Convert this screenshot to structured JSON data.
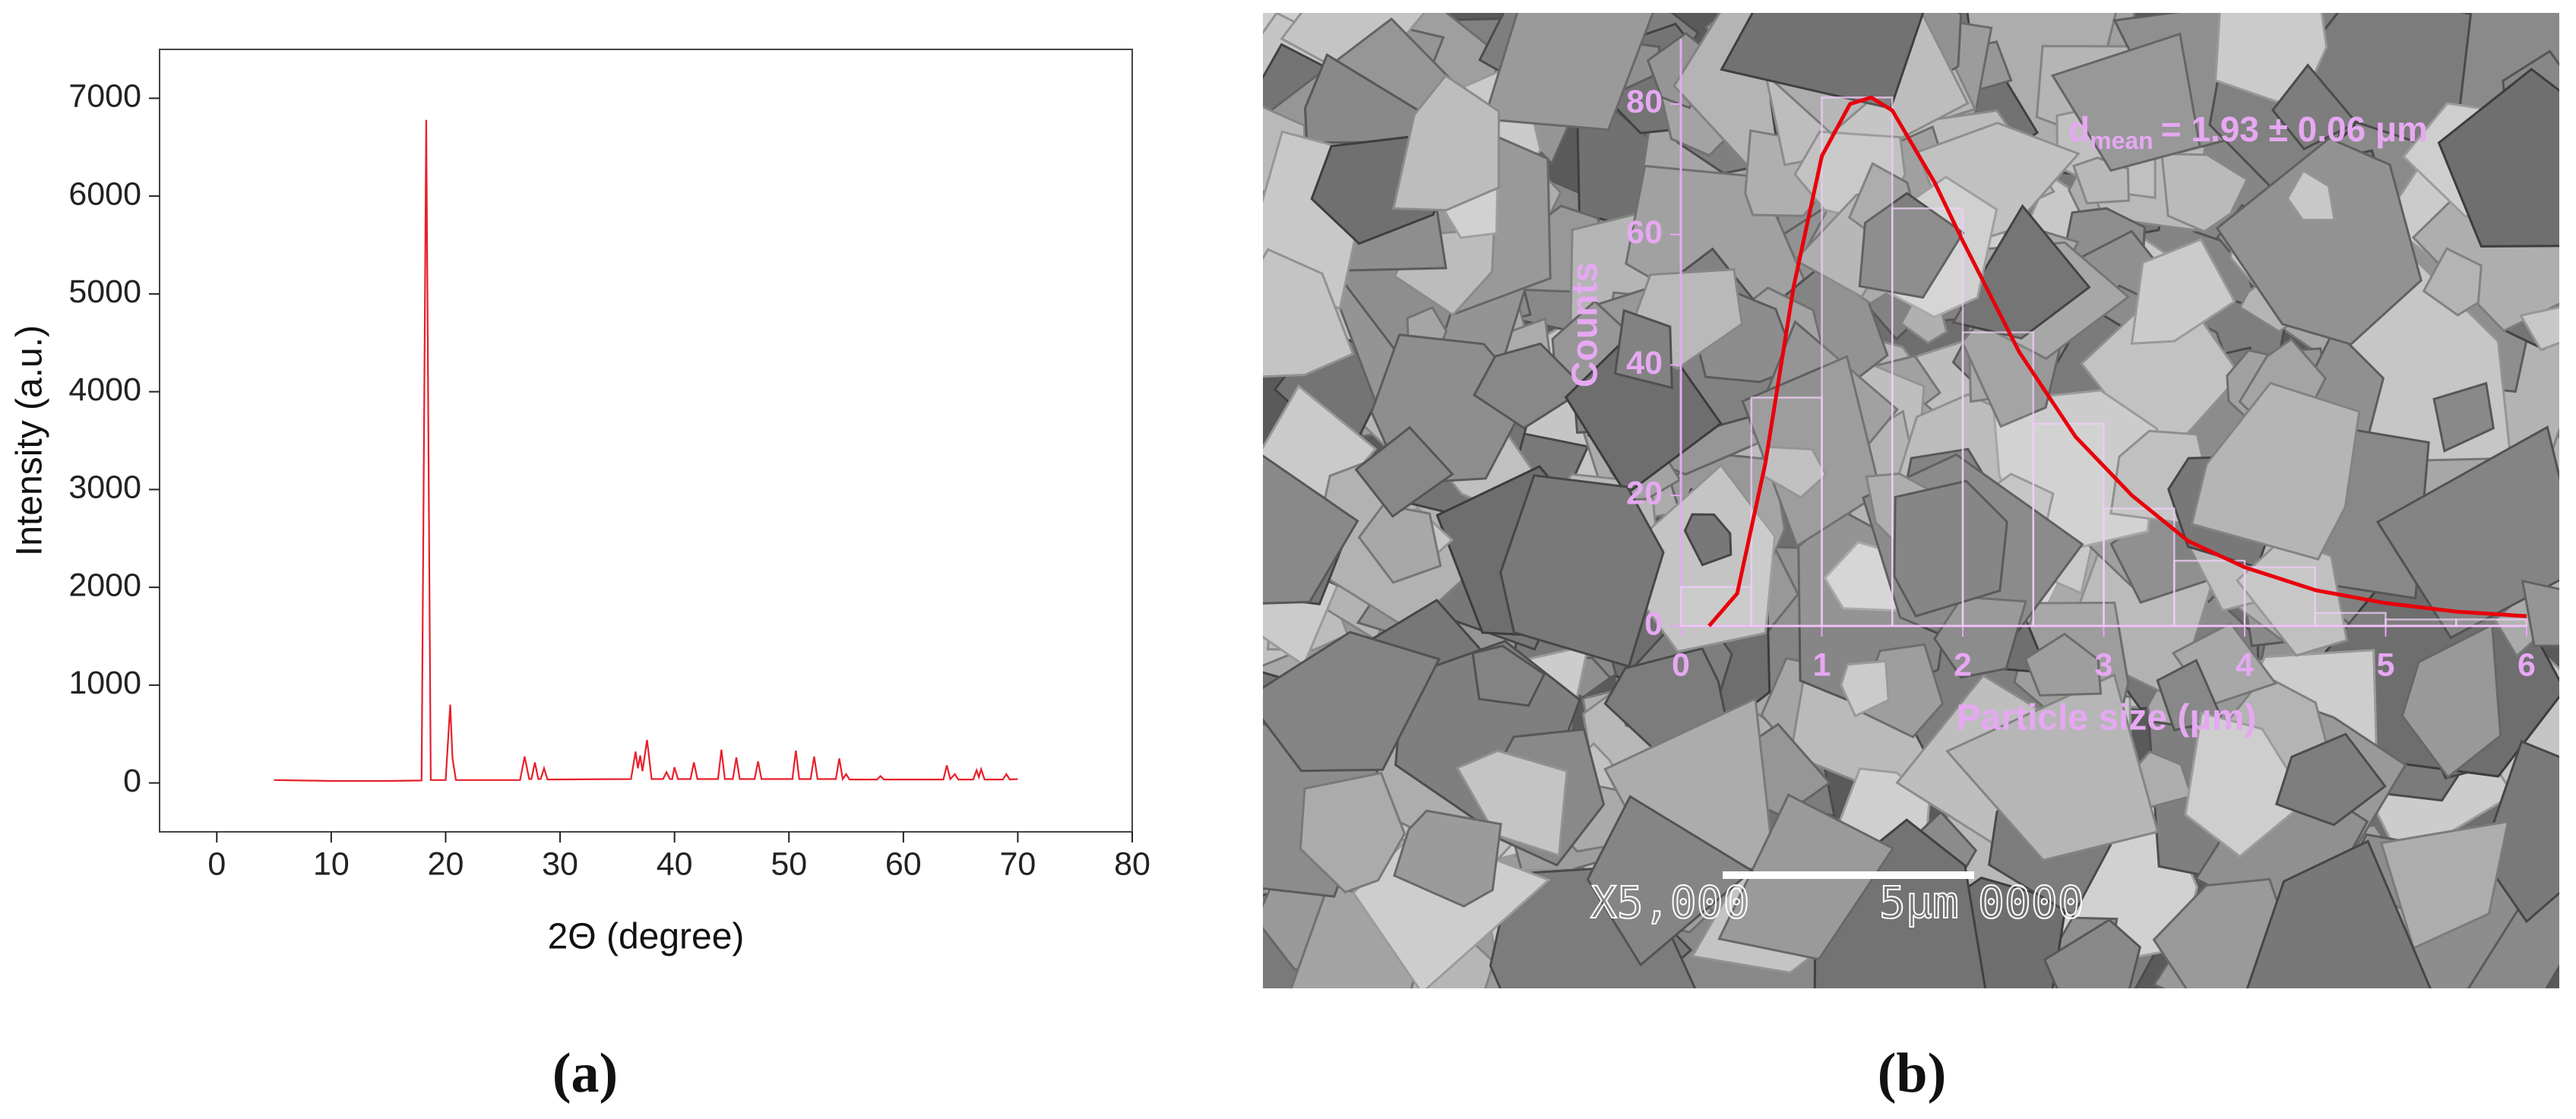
{
  "chart_data": [
    {
      "type": "line",
      "x_label": "2Θ (degree)",
      "y_label": "Intensity (a.u.)",
      "caption": "(a)",
      "color": "#e8202a",
      "xlim": [
        -5,
        80
      ],
      "ylim": [
        -500,
        7500
      ],
      "xticks": [
        0,
        10,
        20,
        30,
        40,
        50,
        60,
        70,
        80
      ],
      "yticks": [
        0,
        1000,
        2000,
        3000,
        4000,
        5000,
        6000,
        7000
      ],
      "x": [
        5,
        10,
        15,
        17.9,
        18.3,
        18.7,
        20.0,
        20.4,
        20.6,
        20.9,
        26.5,
        26.9,
        27.3,
        27.5,
        27.8,
        28.1,
        28.3,
        28.6,
        28.9,
        36.2,
        36.6,
        36.8,
        37.0,
        37.2,
        37.6,
        38.0,
        39.0,
        39.3,
        39.6,
        39.8,
        40.0,
        40.3,
        41.4,
        41.7,
        42.0,
        43.8,
        44.1,
        44.4,
        45.1,
        45.4,
        45.7,
        47.0,
        47.3,
        47.6,
        50.3,
        50.6,
        50.9,
        51.9,
        52.2,
        52.5,
        54.1,
        54.4,
        54.7,
        55.0,
        55.3,
        57.7,
        58.0,
        58.3,
        63.5,
        63.8,
        64.1,
        64.5,
        64.8,
        66.1,
        66.4,
        66.6,
        66.8,
        67.1,
        68.7,
        69.0,
        69.3,
        70
      ],
      "values": [
        30,
        20,
        20,
        25,
        6780,
        30,
        30,
        800,
        250,
        30,
        30,
        270,
        40,
        40,
        210,
        40,
        40,
        150,
        35,
        40,
        320,
        150,
        280,
        120,
        440,
        40,
        40,
        110,
        40,
        40,
        160,
        40,
        40,
        210,
        40,
        40,
        340,
        40,
        40,
        260,
        40,
        40,
        220,
        40,
        40,
        330,
        40,
        40,
        270,
        40,
        40,
        250,
        40,
        90,
        35,
        35,
        70,
        35,
        35,
        180,
        40,
        90,
        35,
        35,
        130,
        60,
        140,
        35,
        35,
        90,
        35,
        40
      ]
    },
    {
      "type": "histogram",
      "x_label": "Particle size (μm)",
      "y_label": "Counts",
      "caption": "(b)",
      "axis_color": "#e6a8f2",
      "annotation": {
        "symbol": "d",
        "subscript": "mean",
        "text": "= 1.93 ± 0.06 μm"
      },
      "image_labels": [
        "X5,000",
        "5μm",
        "0000"
      ],
      "xlim": [
        0,
        6
      ],
      "ylim": [
        0,
        90
      ],
      "xticks": [
        0,
        1,
        2,
        3,
        4,
        5,
        6
      ],
      "yticks": [
        0,
        20,
        40,
        60,
        80
      ],
      "bins": [
        0,
        0.5,
        1,
        1.5,
        2,
        2.5,
        3,
        3.5,
        4,
        4.5,
        5,
        5.5,
        6
      ],
      "values": [
        6,
        35,
        81,
        64,
        45,
        31,
        18,
        10,
        9,
        2,
        1,
        1
      ],
      "fit": {
        "color": "#e8000b",
        "x": [
          0.2,
          0.4,
          0.6,
          0.8,
          1.0,
          1.2,
          1.35,
          1.5,
          1.8,
          2.0,
          2.4,
          2.8,
          3.2,
          3.6,
          4.0,
          4.5,
          5.0,
          5.5,
          6.0
        ],
        "values": [
          0,
          5,
          25,
          52,
          72,
          80,
          81,
          79,
          68,
          59,
          42,
          29,
          20,
          13,
          9,
          5.5,
          3.5,
          2.2,
          1.5
        ]
      }
    }
  ]
}
